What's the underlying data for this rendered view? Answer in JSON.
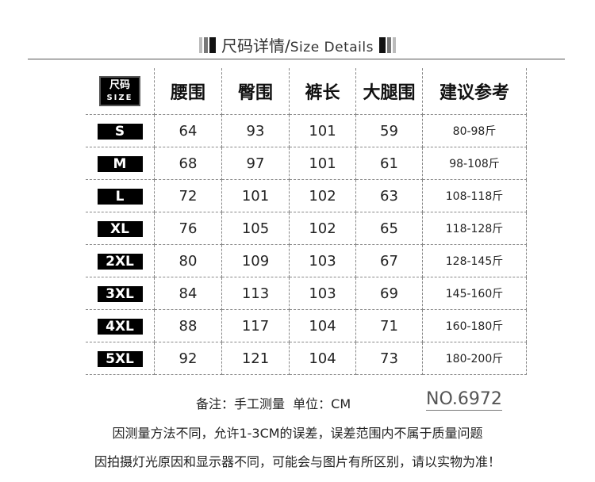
{
  "title": {
    "cn": "尺码详情/",
    "en": "Size Details"
  },
  "table": {
    "corner": {
      "cn": "尺码",
      "en": "SIZE"
    },
    "headers": [
      "腰围",
      "臀围",
      "裤长",
      "大腿围",
      "建议参考"
    ],
    "rows": [
      {
        "size": "S",
        "values": [
          "64",
          "93",
          "101",
          "59",
          "80-98斤"
        ]
      },
      {
        "size": "M",
        "values": [
          "68",
          "97",
          "101",
          "61",
          "98-108斤"
        ]
      },
      {
        "size": "L",
        "values": [
          "72",
          "101",
          "102",
          "63",
          "108-118斤"
        ]
      },
      {
        "size": "XL",
        "values": [
          "76",
          "105",
          "102",
          "65",
          "118-128斤"
        ]
      },
      {
        "size": "2XL",
        "values": [
          "80",
          "109",
          "103",
          "67",
          "128-145斤"
        ]
      },
      {
        "size": "3XL",
        "values": [
          "84",
          "113",
          "103",
          "69",
          "145-160斤"
        ]
      },
      {
        "size": "4XL",
        "values": [
          "88",
          "117",
          "104",
          "71",
          "160-180斤"
        ]
      },
      {
        "size": "5XL",
        "values": [
          "92",
          "121",
          "104",
          "73",
          "180-200斤"
        ]
      }
    ]
  },
  "footer": {
    "note": "备注：手工测量  单位：CM",
    "number": "NO.6972",
    "line1": "因测量方法不同，允许1-3CM的误差，误差范围内不属于质量问题",
    "line2": "因拍摄灯光原因和显示器不同，可能会与图片有所区别，请以实物为准！"
  }
}
